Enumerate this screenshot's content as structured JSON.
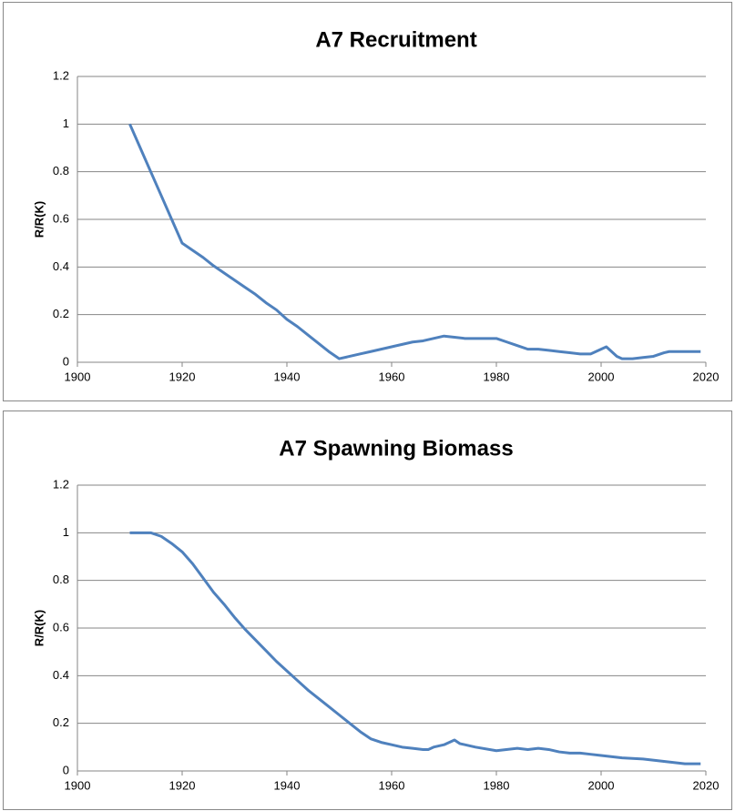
{
  "chart_data": [
    {
      "type": "line",
      "title": "A7 Recruitment",
      "y_label": "R/R(K)",
      "x": [
        1910,
        1912,
        1914,
        1916,
        1918,
        1920,
        1922,
        1924,
        1926,
        1928,
        1930,
        1932,
        1934,
        1936,
        1938,
        1940,
        1942,
        1944,
        1946,
        1948,
        1950,
        1952,
        1954,
        1956,
        1958,
        1960,
        1962,
        1964,
        1966,
        1968,
        1970,
        1972,
        1974,
        1976,
        1978,
        1980,
        1982,
        1984,
        1986,
        1988,
        1990,
        1992,
        1994,
        1996,
        1998,
        2000,
        2001,
        2003,
        2004,
        2006,
        2008,
        2010,
        2012,
        2013,
        2016,
        2019
      ],
      "series": [
        {
          "color": "#4f81bd",
          "values": [
            1,
            0.9,
            0.8,
            0.7,
            0.6,
            0.5,
            0.47,
            0.44,
            0.405,
            0.375,
            0.345,
            0.315,
            0.285,
            0.25,
            0.22,
            0.18,
            0.15,
            0.115,
            0.08,
            0.045,
            0.015,
            0.025,
            0.035,
            0.045,
            0.055,
            0.065,
            0.075,
            0.085,
            0.09,
            0.1,
            0.11,
            0.105,
            0.1,
            0.1,
            0.1,
            0.1,
            0.085,
            0.07,
            0.055,
            0.055,
            0.05,
            0.045,
            0.04,
            0.035,
            0.035,
            0.055,
            0.065,
            0.025,
            0.015,
            0.015,
            0.02,
            0.025,
            0.04,
            0.045,
            0.045,
            0.045
          ]
        }
      ],
      "xlim": [
        1900,
        2020
      ],
      "xticks": [
        1900,
        1920,
        1940,
        1960,
        1980,
        2000,
        2020
      ],
      "ylim": [
        0,
        1.2
      ],
      "yticks": [
        0,
        0.2,
        0.4,
        0.6,
        0.8,
        1,
        1.2
      ],
      "grid": true
    },
    {
      "type": "line",
      "title": "A7 Spawning Biomass",
      "y_label": "R/R(K)",
      "x": [
        1910,
        1912,
        1914,
        1916,
        1918,
        1920,
        1922,
        1924,
        1926,
        1928,
        1930,
        1932,
        1934,
        1936,
        1938,
        1940,
        1942,
        1944,
        1946,
        1948,
        1950,
        1952,
        1954,
        1956,
        1958,
        1960,
        1962,
        1964,
        1966,
        1967,
        1968,
        1970,
        1972,
        1973,
        1976,
        1980,
        1984,
        1986,
        1988,
        1990,
        1992,
        1994,
        1996,
        1998,
        2000,
        2004,
        2008,
        2012,
        2016,
        2019
      ],
      "series": [
        {
          "color": "#4f81bd",
          "values": [
            1,
            1,
            1,
            0.985,
            0.955,
            0.92,
            0.87,
            0.81,
            0.75,
            0.7,
            0.645,
            0.595,
            0.55,
            0.505,
            0.46,
            0.42,
            0.38,
            0.34,
            0.305,
            0.27,
            0.235,
            0.2,
            0.165,
            0.135,
            0.12,
            0.11,
            0.1,
            0.095,
            0.09,
            0.09,
            0.1,
            0.11,
            0.13,
            0.115,
            0.1,
            0.085,
            0.095,
            0.09,
            0.095,
            0.09,
            0.08,
            0.075,
            0.075,
            0.07,
            0.065,
            0.055,
            0.05,
            0.04,
            0.03,
            0.03
          ]
        }
      ],
      "xlim": [
        1900,
        2020
      ],
      "xticks": [
        1900,
        1920,
        1940,
        1960,
        1980,
        2000,
        2020
      ],
      "ylim": [
        0,
        1.2
      ],
      "yticks": [
        0,
        0.2,
        0.4,
        0.6,
        0.8,
        1,
        1.2
      ],
      "grid": true
    }
  ]
}
